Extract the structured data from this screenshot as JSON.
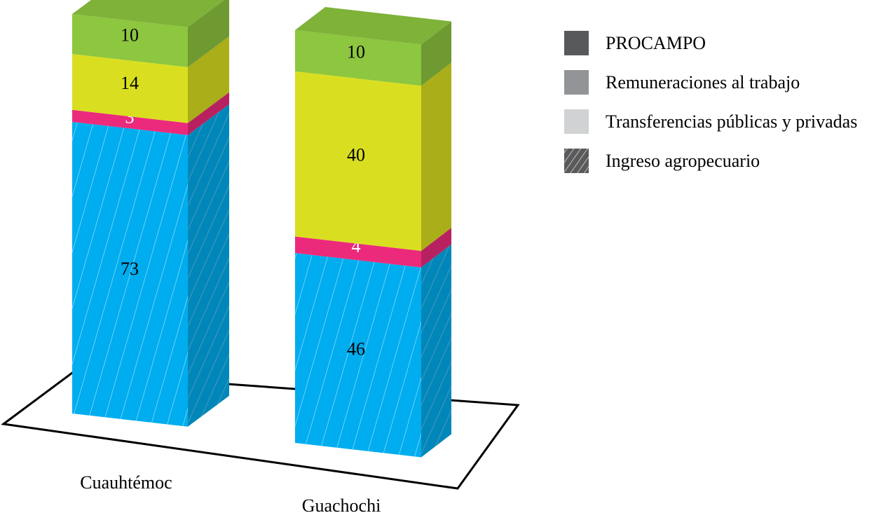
{
  "chart_data": {
    "type": "bar",
    "stacked": true,
    "three_d": true,
    "categories": [
      "Cuauhtémoc",
      "Guachochi"
    ],
    "series": [
      {
        "name": "Ingreso agropecuario",
        "values": [
          73,
          46
        ],
        "color": "#00adef",
        "hatched": true
      },
      {
        "name": "Transferencias públicas y privadas",
        "values": [
          3,
          4
        ],
        "color": "#ec2a7b"
      },
      {
        "name": "Remuneraciones al trabajo",
        "values": [
          14,
          40
        ],
        "color": "#d9df20"
      },
      {
        "name": "PROCAMPO",
        "values": [
          10,
          10
        ],
        "color": "#8dc63f"
      }
    ],
    "legend": {
      "placement": "top-right",
      "entries": [
        {
          "label": "PROCAMPO",
          "swatch": "#58595b",
          "hatched": false
        },
        {
          "label": "Remuneraciones al trabajo",
          "swatch": "#929497",
          "hatched": false
        },
        {
          "label": "Transferencias públicas y privadas",
          "swatch": "#d1d2d4",
          "hatched": false
        },
        {
          "label": "Ingreso agropecuario",
          "swatch": "#5a5a5c",
          "hatched": true
        }
      ]
    },
    "data_label_colors": [
      "#000000",
      "#ffffff",
      "#000000",
      "#000000"
    ],
    "grid": false
  }
}
